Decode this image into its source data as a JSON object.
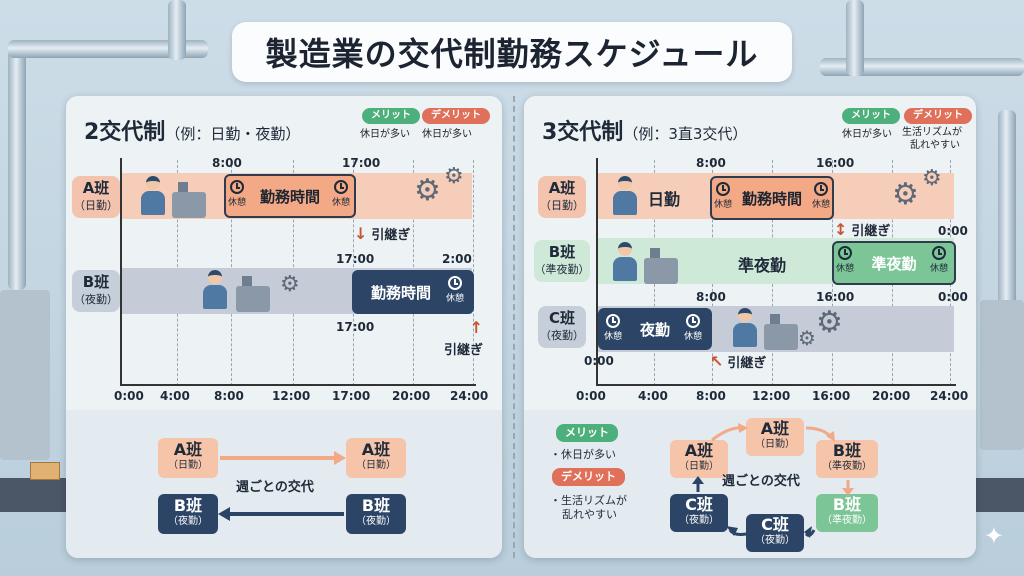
{
  "title": "製造業の交代制勤務スケジュール",
  "colors": {
    "orange": "#f3a986",
    "navy": "#2c4566",
    "green": "#7cc596",
    "merit": "#4caf7c",
    "demerit": "#e0705a"
  },
  "left": {
    "title": "2交代制",
    "subtitle": "（例：日勤・夜勤）",
    "merit_label": "メリット",
    "merit_text": "休日が多い",
    "demerit_label": "デメリット",
    "demerit_text": "休日が多い",
    "crew_a": "A班",
    "crew_a_sub": "（日勤）",
    "crew_b": "B班",
    "crew_b_sub": "（夜勤）",
    "a_start": "8:00",
    "a_end": "17:00",
    "a_shift": "勤務時間",
    "break": "休憩",
    "handover": "引継ぎ",
    "b_start": "17:00",
    "b_end": "2:00",
    "b_shift": "勤務時間",
    "b_lower_time": "17:00",
    "ticks": [
      "0:00",
      "4:00",
      "8:00",
      "12:00",
      "17:00",
      "20:00",
      "24:00"
    ],
    "cycle_text": "週ごとの交代",
    "cycle_a": "A班",
    "cycle_a_sub": "（日勤）",
    "cycle_b": "B班",
    "cycle_b_sub": "（夜勤）"
  },
  "right": {
    "title": "3交代制",
    "subtitle": "（例：3直3交代）",
    "merit_label": "メリット",
    "merit_text": "休日が多い",
    "demerit_label": "デメリット",
    "demerit_text_1": "生活リズムが",
    "demerit_text_2": "乱れやすい",
    "crew_a": "A班",
    "crew_a_sub": "（日勤）",
    "crew_b": "B班",
    "crew_b_sub": "（準夜勤）",
    "crew_c": "C班",
    "crew_c_sub": "（夜勤）",
    "day_label": "日勤",
    "a_start": "8:00",
    "a_end": "16:00",
    "a_shift": "勤務時間",
    "break": "休憩",
    "handover": "引継ぎ",
    "b_time_end": "0:00",
    "b_label": "準夜勤",
    "b_shift": "準夜勤",
    "c_time_8": "8:00",
    "c_time_16": "16:00",
    "c_time_0": "0:00",
    "c_shift": "夜勤",
    "c_time_start": "0:00",
    "ticks": [
      "0:00",
      "4:00",
      "8:00",
      "12:00",
      "16:00",
      "20:00",
      "24:00"
    ],
    "legend_merit": "メリット",
    "legend_merit_text": "・休日が多い",
    "legend_demerit": "デメリット",
    "legend_demerit_text_1": "・生活リズムが",
    "legend_demerit_text_2": "乱れやすい",
    "cycle_text": "週ごとの交代",
    "cycle_a": "A班",
    "cycle_a_sub": "（日勤）",
    "cycle_b": "B班",
    "cycle_b_sub": "（準夜勤）",
    "cycle_c": "C班",
    "cycle_c_sub": "（夜勤）"
  }
}
